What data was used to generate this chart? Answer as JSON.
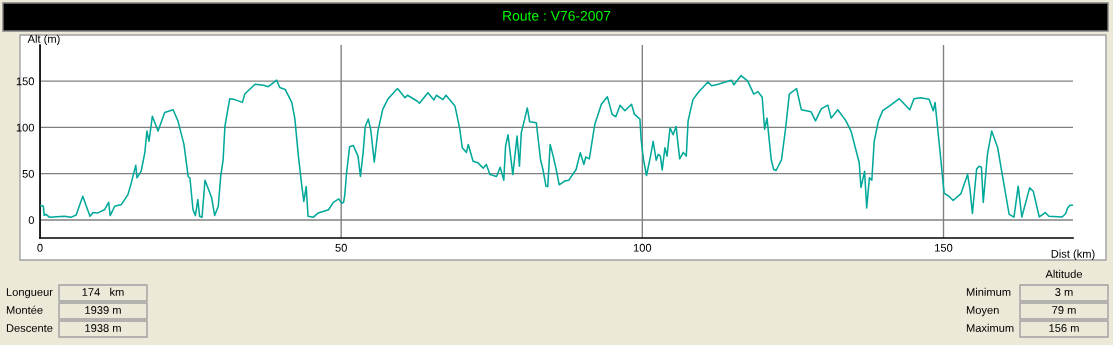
{
  "chart_data": {
    "type": "line",
    "title": "Route : V76-2007",
    "xlabel": "Dist (km)",
    "ylabel": "Alt (m)",
    "xlim": [
      0,
      171.5
    ],
    "ylim": [
      -19.5,
      189
    ],
    "xticks": [
      0,
      50,
      100,
      150
    ],
    "yticks": [
      0,
      50,
      100,
      150
    ],
    "grid": true,
    "marker": "none",
    "line_style": "solid",
    "series": [
      {
        "color": "#00a89a",
        "x": [
          0,
          0.55,
          0.7,
          1,
          1.55,
          4.05,
          5.2,
          6,
          7.1,
          8.3,
          8.8,
          9.6,
          10.7,
          11.4,
          11.65,
          12.4,
          13.5,
          14.6,
          15.15,
          15.5,
          15.9,
          16.1,
          16.8,
          17.4,
          17.75,
          18.1,
          18.65,
          19.6,
          20.7,
          22.1,
          22.9,
          23.9,
          24.6,
          24.9,
          25.4,
          25.8,
          26.2,
          26.5,
          26.9,
          27.4,
          28.5,
          29.0,
          29.6,
          30.0,
          30.4,
          30.7,
          31.5,
          32.35,
          33.6,
          34.0,
          35.7,
          37.1,
          37.9,
          39.3,
          39.8,
          40.7,
          41.8,
          42.3,
          42.9,
          43.5,
          43.8,
          44.2,
          44.5,
          45.4,
          46.2,
          47.9,
          48.7,
          49.6,
          50.1,
          50.4,
          50.6,
          50.9,
          51.4,
          52.0,
          52.8,
          53.2,
          53.65,
          54.0,
          54.5,
          54.9,
          55.5,
          56.1,
          56.9,
          57.8,
          59.35,
          60.6,
          61.0,
          62.6,
          63.0,
          64.4,
          65.4,
          65.8,
          66.9,
          67.4,
          68.9,
          69.7,
          70.1,
          70.8,
          71.1,
          71.9,
          72.7,
          73.6,
          74.1,
          74.7,
          75.8,
          76.4,
          77.0,
          77.3,
          77.7,
          78.5,
          79.2,
          79.6,
          79.9,
          80.5,
          80.9,
          81.3,
          82.4,
          83.1,
          83.5,
          84.0,
          84.3,
          84.7,
          85.2,
          85.7,
          86.2,
          87.1,
          87.8,
          89.0,
          89.7,
          90.3,
          90.6,
          91.2,
          92.1,
          93.2,
          94.2,
          95.0,
          95.6,
          96.3,
          97.1,
          98.2,
          98.7,
          99.6,
          99.8,
          100.2,
          100.7,
          101.3,
          101.8,
          102.3,
          102.65,
          103.0,
          103.3,
          103.75,
          104.1,
          104.6,
          105.1,
          105.6,
          106.2,
          106.8,
          107.3,
          107.6,
          108.4,
          109.3,
          110.9,
          111.5,
          112.3,
          114.8,
          115.2,
          116.4,
          117.5,
          118.5,
          119.2,
          119.9,
          120.3,
          120.7,
          121.4,
          121.8,
          122.2,
          123.1,
          123.8,
          124.4,
          125.6,
          126.4,
          128.0,
          128.75,
          129.7,
          130.8,
          131.35,
          132.45,
          133.8,
          134.65,
          136.0,
          136.3,
          136.9,
          137.25,
          137.7,
          138.1,
          138.5,
          139.2,
          139.9,
          141.0,
          142.65,
          144.4,
          145.1,
          146.2,
          147.6,
          148.3,
          148.6,
          149.0,
          149.56,
          150.1,
          150.9,
          151.6,
          152.9,
          154.0,
          154.4,
          154.8,
          155.5,
          155.9,
          156.3,
          156.6,
          157.3,
          158.0,
          159.0,
          159.7,
          160.9,
          161.7,
          162.4,
          163.0,
          164.3,
          164.9,
          165.9,
          166.9,
          167.5,
          169.7,
          170.3,
          170.6,
          171.0,
          171.4
        ],
        "values": [
          15.5,
          15,
          5,
          6,
          3,
          4,
          3,
          5.4,
          25.6,
          4,
          8,
          7.6,
          11,
          19,
          4.7,
          14.8,
          16.6,
          27.4,
          40,
          49,
          59,
          45.5,
          52.7,
          72.6,
          96,
          85,
          112,
          96,
          116,
          119,
          107,
          81.6,
          47,
          45,
          11,
          4.7,
          22,
          4,
          3,
          43,
          24,
          4.7,
          14.8,
          47,
          65,
          101,
          131,
          130,
          127,
          136,
          146.6,
          145.5,
          144,
          151,
          143,
          141,
          127,
          110,
          69,
          35,
          20,
          36,
          4,
          3,
          7.6,
          11,
          19,
          22.7,
          18,
          19,
          27,
          51,
          79,
          80.5,
          69,
          47,
          73,
          101,
          109,
          98,
          62.5,
          96,
          119.5,
          131,
          142,
          132,
          134.7,
          128.5,
          126,
          137.5,
          129.6,
          134.7,
          130,
          134.7,
          123,
          98,
          78,
          73,
          81.6,
          63.5,
          61.7,
          56,
          60,
          49,
          47,
          57,
          43,
          80,
          92,
          49,
          90.6,
          58,
          94,
          110,
          121,
          106,
          105,
          65,
          54.5,
          36.5,
          36,
          81.6,
          69,
          54.5,
          38,
          42,
          43,
          54.5,
          72.6,
          60,
          68,
          66,
          103,
          125,
          133,
          114,
          111.5,
          124,
          118,
          125,
          114,
          109,
          87,
          65,
          48,
          67,
          85,
          64.6,
          71,
          69,
          54,
          78,
          69,
          99.6,
          92,
          101,
          66,
          73,
          69,
          107,
          130,
          138,
          149,
          145,
          146,
          151,
          146,
          156,
          150,
          136,
          138.6,
          132.5,
          98,
          110,
          65,
          54.5,
          53.4,
          65,
          99.6,
          136,
          142,
          119,
          117,
          107,
          120,
          124,
          110,
          119,
          107,
          96,
          62,
          35,
          52.5,
          13,
          45.5,
          43,
          85,
          107,
          118,
          123,
          131,
          119,
          131,
          132,
          130.3,
          118,
          127,
          101,
          65,
          29,
          25.6,
          21,
          28.5,
          49,
          33,
          7,
          55,
          58,
          57,
          19,
          71,
          96,
          78,
          51,
          6,
          3,
          36.5,
          3.2,
          34.7,
          31,
          3.2,
          8,
          4,
          3.2,
          7,
          13,
          16,
          16
        ]
      }
    ],
    "annotations": [
      "Longueur",
      "174   km",
      "Montée",
      "1939 m",
      "Descente",
      "1938 m",
      "Altitude",
      "Minimum",
      "3 m",
      "Moyen",
      "79 m",
      "Maximum",
      "156 m"
    ]
  }
}
